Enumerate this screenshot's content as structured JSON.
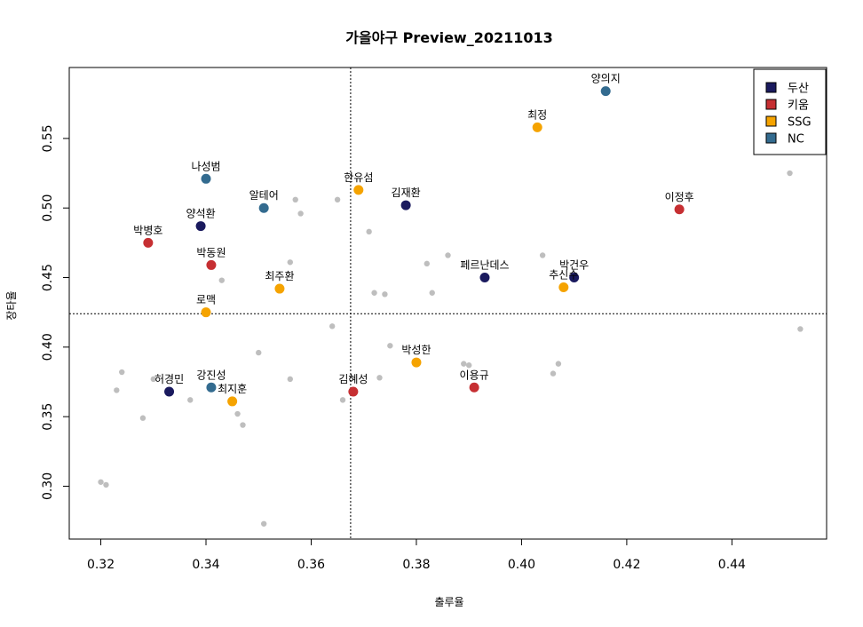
{
  "chart_data": {
    "type": "scatter",
    "title": "가을야구 Preview_20211013",
    "xlabel": "출루율",
    "ylabel": "장타율",
    "xlim": [
      0.314,
      0.458
    ],
    "ylim": [
      0.262,
      0.601
    ],
    "x_ticks": [
      0.32,
      0.34,
      0.36,
      0.38,
      0.4,
      0.42,
      0.44
    ],
    "y_ticks": [
      0.3,
      0.35,
      0.4,
      0.45,
      0.5,
      0.55
    ],
    "ref_lines": {
      "x": 0.3675,
      "y": 0.424
    },
    "legend_position": "top-right",
    "legend": [
      {
        "name": "두산",
        "color": "#1a1a5e"
      },
      {
        "name": "키움",
        "color": "#c62f32"
      },
      {
        "name": "SSG",
        "color": "#f5a300"
      },
      {
        "name": "NC",
        "color": "#336b8f"
      }
    ],
    "background_points": [
      [
        0.32,
        0.303
      ],
      [
        0.321,
        0.301
      ],
      [
        0.323,
        0.369
      ],
      [
        0.324,
        0.382
      ],
      [
        0.328,
        0.349
      ],
      [
        0.33,
        0.377
      ],
      [
        0.337,
        0.362
      ],
      [
        0.343,
        0.448
      ],
      [
        0.346,
        0.352
      ],
      [
        0.347,
        0.344
      ],
      [
        0.35,
        0.396
      ],
      [
        0.351,
        0.273
      ],
      [
        0.356,
        0.461
      ],
      [
        0.356,
        0.377
      ],
      [
        0.357,
        0.506
      ],
      [
        0.358,
        0.496
      ],
      [
        0.364,
        0.415
      ],
      [
        0.365,
        0.506
      ],
      [
        0.366,
        0.362
      ],
      [
        0.371,
        0.483
      ],
      [
        0.372,
        0.439
      ],
      [
        0.373,
        0.378
      ],
      [
        0.374,
        0.438
      ],
      [
        0.375,
        0.401
      ],
      [
        0.382,
        0.46
      ],
      [
        0.383,
        0.439
      ],
      [
        0.386,
        0.466
      ],
      [
        0.389,
        0.388
      ],
      [
        0.39,
        0.387
      ],
      [
        0.404,
        0.466
      ],
      [
        0.406,
        0.381
      ],
      [
        0.407,
        0.388
      ],
      [
        0.451,
        0.525
      ],
      [
        0.453,
        0.413
      ]
    ],
    "highlighted_points": [
      {
        "label": "양의지",
        "team": "NC",
        "x": 0.416,
        "y": 0.584
      },
      {
        "label": "최정",
        "team": "SSG",
        "x": 0.403,
        "y": 0.558
      },
      {
        "label": "나성범",
        "team": "NC",
        "x": 0.34,
        "y": 0.521
      },
      {
        "label": "한유섬",
        "team": "SSG",
        "x": 0.369,
        "y": 0.513
      },
      {
        "label": "김재환",
        "team": "두산",
        "x": 0.378,
        "y": 0.502
      },
      {
        "label": "알테어",
        "team": "NC",
        "x": 0.351,
        "y": 0.5
      },
      {
        "label": "이정후",
        "team": "키움",
        "x": 0.43,
        "y": 0.499
      },
      {
        "label": "양석환",
        "team": "두산",
        "x": 0.339,
        "y": 0.487
      },
      {
        "label": "박병호",
        "team": "키움",
        "x": 0.329,
        "y": 0.475
      },
      {
        "label": "박동원",
        "team": "키움",
        "x": 0.341,
        "y": 0.459
      },
      {
        "label": "페르난데스",
        "team": "두산",
        "x": 0.393,
        "y": 0.45
      },
      {
        "label": "박건우",
        "team": "두산",
        "x": 0.41,
        "y": 0.45
      },
      {
        "label": "추신수",
        "team": "SSG",
        "x": 0.408,
        "y": 0.443
      },
      {
        "label": "최주환",
        "team": "SSG",
        "x": 0.354,
        "y": 0.442
      },
      {
        "label": "로맥",
        "team": "SSG",
        "x": 0.34,
        "y": 0.425
      },
      {
        "label": "박성한",
        "team": "SSG",
        "x": 0.38,
        "y": 0.389
      },
      {
        "label": "이용규",
        "team": "키움",
        "x": 0.391,
        "y": 0.371
      },
      {
        "label": "강진성",
        "team": "NC",
        "x": 0.341,
        "y": 0.371
      },
      {
        "label": "김혜성",
        "team": "키움",
        "x": 0.368,
        "y": 0.368
      },
      {
        "label": "허경민",
        "team": "두산",
        "x": 0.333,
        "y": 0.368
      },
      {
        "label": "최지훈",
        "team": "SSG",
        "x": 0.345,
        "y": 0.361
      }
    ]
  }
}
